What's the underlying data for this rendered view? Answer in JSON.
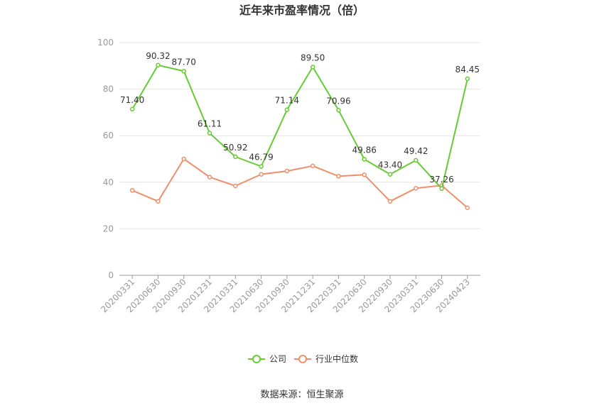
{
  "chart_data": {
    "type": "line",
    "title": "近年来市盈率情况（倍）",
    "source": "数据来源：恒生聚源",
    "xlabel": "",
    "ylabel": "",
    "ylim": [
      0,
      100
    ],
    "yticks": [
      "0",
      "20",
      "40",
      "60",
      "80",
      "100"
    ],
    "categories": [
      "20200331",
      "20200630",
      "20200930",
      "20201231",
      "20210331",
      "20210630",
      "20210930",
      "20211231",
      "20220331",
      "20220630",
      "20220930",
      "20230331",
      "20230630",
      "20240423"
    ],
    "series": [
      {
        "name": "公司",
        "color": "#66cc33",
        "values": [
          71.4,
          90.32,
          87.7,
          61.11,
          50.92,
          46.79,
          71.14,
          89.5,
          70.96,
          49.86,
          43.4,
          49.42,
          37.26,
          84.45
        ],
        "labels": [
          "71.40",
          "90.32",
          "87.70",
          "61.11",
          "50.92",
          "46.79",
          "71.14",
          "89.50",
          "70.96",
          "49.86",
          "43.40",
          "49.42",
          "37.26",
          "84.45"
        ]
      },
      {
        "name": "行业中位数",
        "color": "#f0906a",
        "values": [
          36.5,
          31.8,
          50.0,
          42.2,
          38.4,
          43.4,
          44.8,
          47.0,
          42.6,
          43.2,
          31.8,
          37.4,
          38.6,
          29.0
        ]
      }
    ],
    "grid": true,
    "legend": "bottom"
  }
}
